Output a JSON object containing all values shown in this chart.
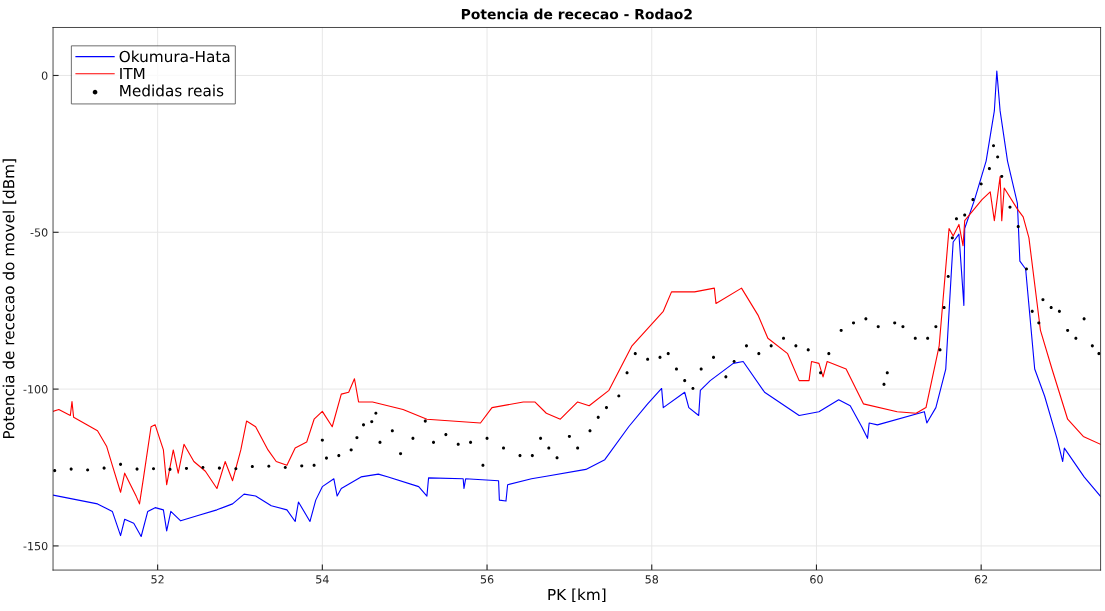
{
  "chart_data": {
    "type": "line",
    "title": "Potencia de rececao - Rodao2",
    "xlabel": "PK [km]",
    "ylabel": "Potencia de rececao do movel [dBm]",
    "xlim": [
      50.73,
      63.45
    ],
    "ylim": [
      -157.7,
      15.3
    ],
    "xticks": [
      52,
      54,
      56,
      58,
      60,
      62
    ],
    "yticks": [
      -150,
      -100,
      -50,
      0
    ],
    "grid": true,
    "legend": "top left",
    "series": [
      {
        "name": "Okumura-Hata",
        "color": "#0000ff",
        "line_style": "solid",
        "marker": "none",
        "x": [
          50.73,
          51.27,
          51.45,
          51.55,
          51.6,
          51.71,
          51.8,
          51.88,
          51.97,
          52.07,
          52.11,
          52.16,
          52.28,
          52.49,
          52.72,
          52.91,
          53.05,
          53.19,
          53.38,
          53.57,
          53.67,
          53.71,
          53.85,
          53.92,
          54.0,
          54.14,
          54.18,
          54.23,
          54.47,
          54.68,
          54.8,
          55.17,
          55.27,
          55.29,
          55.71,
          55.72,
          55.74,
          56.14,
          56.15,
          56.23,
          56.25,
          56.54,
          56.72,
          57.2,
          57.43,
          57.72,
          57.95,
          58.12,
          58.14,
          58.4,
          58.45,
          58.57,
          58.59,
          58.71,
          58.99,
          59.11,
          59.37,
          59.79,
          60.03,
          60.27,
          60.41,
          60.55,
          60.62,
          60.64,
          60.74,
          61.31,
          61.34,
          61.45,
          61.57,
          61.64,
          61.66,
          61.73,
          61.79,
          61.8,
          61.92,
          62.06,
          62.16,
          62.19,
          62.23,
          62.32,
          62.44,
          62.47,
          62.54,
          62.65,
          62.77,
          62.92,
          62.99,
          63.01,
          63.25,
          63.45
        ],
        "values": [
          -133.8,
          -136.6,
          -139,
          -146.7,
          -141.5,
          -142.8,
          -147,
          -139,
          -137.8,
          -138.5,
          -145.2,
          -139,
          -142,
          -140.3,
          -138.5,
          -136.6,
          -133.5,
          -134.1,
          -137.2,
          -138.5,
          -142.2,
          -136,
          -142.2,
          -135.4,
          -131.1,
          -128.6,
          -134.1,
          -131.7,
          -128,
          -127.1,
          -128,
          -131.1,
          -134.1,
          -128.3,
          -128.6,
          -131.7,
          -128.6,
          -129.2,
          -135.4,
          -135.7,
          -130.5,
          -128.6,
          -127.8,
          -125.6,
          -122.5,
          -112,
          -104.7,
          -99.8,
          -105.9,
          -101,
          -105.9,
          -108.4,
          -100.4,
          -97.3,
          -91.8,
          -91.2,
          -101,
          -108.4,
          -107.2,
          -103.4,
          -105.3,
          -112,
          -115.7,
          -110.8,
          -111.4,
          -107.2,
          -110.8,
          -105.9,
          -93.6,
          -61.7,
          -53.1,
          -50.6,
          -73.3,
          -48.8,
          -39.6,
          -27.3,
          -11.3,
          1.4,
          -11.3,
          -27.3,
          -40.8,
          -59.2,
          -61.7,
          -93.6,
          -102.2,
          -115.7,
          -123.1,
          -118.8,
          -128,
          -134.2
        ]
      },
      {
        "name": "ITM",
        "color": "#ff0000",
        "line_style": "solid",
        "marker": "none",
        "x": [
          50.73,
          50.8,
          50.94,
          50.96,
          50.98,
          51.27,
          51.38,
          51.45,
          51.55,
          51.6,
          51.74,
          51.78,
          51.83,
          51.92,
          51.97,
          52.07,
          52.11,
          52.19,
          52.25,
          52.32,
          52.44,
          52.58,
          52.72,
          52.82,
          52.91,
          53.01,
          53.08,
          53.19,
          53.34,
          53.44,
          53.57,
          53.67,
          53.81,
          53.9,
          54.0,
          54.12,
          54.23,
          54.32,
          54.39,
          54.44,
          54.61,
          54.98,
          55.27,
          55.92,
          56.06,
          56.44,
          56.58,
          56.72,
          56.89,
          57.1,
          57.24,
          57.48,
          57.76,
          58.14,
          58.24,
          58.52,
          58.76,
          58.78,
          59.09,
          59.29,
          59.41,
          59.65,
          59.79,
          59.91,
          59.94,
          60.03,
          60.08,
          60.13,
          60.36,
          60.57,
          60.98,
          61.21,
          61.33,
          61.49,
          61.61,
          61.66,
          61.73,
          61.78,
          61.8,
          62.01,
          62.11,
          62.16,
          62.23,
          62.25,
          62.28,
          62.44,
          62.51,
          62.58,
          62.72,
          62.86,
          63.05,
          63.24,
          63.45
        ],
        "values": [
          -107.1,
          -106.5,
          -108.4,
          -104,
          -109,
          -113.3,
          -118.2,
          -124.3,
          -132.9,
          -126.8,
          -134.2,
          -136.6,
          -128,
          -112,
          -111.4,
          -119.4,
          -130.5,
          -119.4,
          -126.8,
          -117.6,
          -123.1,
          -126.2,
          -131.7,
          -123.1,
          -129.2,
          -119.4,
          -110.2,
          -112,
          -119.4,
          -123.1,
          -124.3,
          -118.8,
          -116.9,
          -109.6,
          -107.1,
          -112,
          -101.6,
          -101,
          -96.7,
          -104.1,
          -104.1,
          -106.5,
          -109.6,
          -110.8,
          -105.9,
          -104.1,
          -104.1,
          -107.7,
          -109.6,
          -104.1,
          -105.3,
          -100.4,
          -86.2,
          -75.2,
          -69,
          -69,
          -67.8,
          -72.7,
          -67.8,
          -76.4,
          -83.8,
          -88.7,
          -97.3,
          -97.3,
          -91.2,
          -91.8,
          -96.1,
          -91.2,
          -93.6,
          -104.7,
          -107.2,
          -107.7,
          -105.9,
          -86.2,
          -48.8,
          -51.2,
          -47.5,
          -54.3,
          -46.3,
          -39.6,
          -37.1,
          -46.3,
          -32.2,
          -46.3,
          -35.9,
          -42.6,
          -45.1,
          -51.8,
          -81.3,
          -93.6,
          -109.6,
          -115.1,
          -117.6
        ]
      },
      {
        "name": "Medidas reais",
        "type": "scatter",
        "color": "#000000",
        "marker": "circle",
        "x": [
          50.75,
          50.95,
          51.15,
          51.35,
          51.55,
          51.75,
          51.95,
          52.15,
          52.35,
          52.55,
          52.75,
          52.95,
          53.15,
          53.35,
          53.55,
          53.75,
          53.9,
          54.0,
          54.05,
          54.2,
          54.35,
          54.42,
          54.5,
          54.6,
          54.65,
          54.7,
          54.85,
          54.95,
          55.1,
          55.25,
          55.35,
          55.5,
          55.65,
          55.8,
          55.95,
          56.0,
          56.2,
          56.4,
          56.55,
          56.65,
          56.75,
          56.85,
          57.0,
          57.1,
          57.25,
          57.35,
          57.45,
          57.6,
          57.7,
          57.8,
          57.95,
          58.1,
          58.2,
          58.3,
          58.4,
          58.5,
          58.6,
          58.75,
          58.9,
          59.0,
          59.15,
          59.3,
          59.45,
          59.6,
          59.75,
          59.9,
          60.05,
          60.15,
          60.3,
          60.45,
          60.6,
          60.75,
          60.82,
          60.86,
          60.95,
          61.05,
          61.2,
          61.35,
          61.45,
          61.5,
          61.55,
          61.6,
          61.65,
          61.7,
          61.8,
          61.9,
          62.0,
          62.1,
          62.15,
          62.2,
          62.25,
          62.35,
          62.45,
          62.55,
          62.62,
          62.7,
          62.75,
          62.85,
          62.95,
          63.05,
          63.15,
          63.25,
          63.35,
          63.43
        ],
        "values": [
          -126,
          -125.5,
          -125.8,
          -125.2,
          -124,
          -125.5,
          -125.4,
          -125.6,
          -125.3,
          -125,
          -125.2,
          -125.4,
          -124.7,
          -124.6,
          -125,
          -124.5,
          -124.3,
          -116.3,
          -122,
          -121.2,
          -119.4,
          -115.5,
          -111.4,
          -110.4,
          -107.7,
          -117,
          -113.3,
          -120.6,
          -115.7,
          -110.2,
          -117,
          -114.5,
          -117.6,
          -117,
          -124.3,
          -115.7,
          -118.8,
          -121.2,
          -121.2,
          -115.7,
          -118.8,
          -121.9,
          -115.1,
          -118.8,
          -113.3,
          -109,
          -105.9,
          -102.2,
          -94.8,
          -88.7,
          -90.5,
          -89.9,
          -88.7,
          -93.6,
          -97.3,
          -99.8,
          -93.6,
          -89.9,
          -96.1,
          -91.2,
          -86.2,
          -88.7,
          -86.2,
          -83.8,
          -86.2,
          -87.5,
          -94.8,
          -88.7,
          -81.3,
          -78.9,
          -77.6,
          -80.1,
          -98.5,
          -94.8,
          -78.9,
          -80.1,
          -83.8,
          -83.8,
          -80.1,
          -87.5,
          -74,
          -64.1,
          -51.8,
          -45.7,
          -44.5,
          -39.6,
          -34.6,
          -29.7,
          -22.4,
          -26,
          -32.2,
          -42,
          -48.2,
          -61.7,
          -75.2,
          -78.9,
          -71.5,
          -74,
          -75.2,
          -81.3,
          -83.8,
          -77.6,
          -86.2,
          -88.7
        ]
      }
    ]
  }
}
